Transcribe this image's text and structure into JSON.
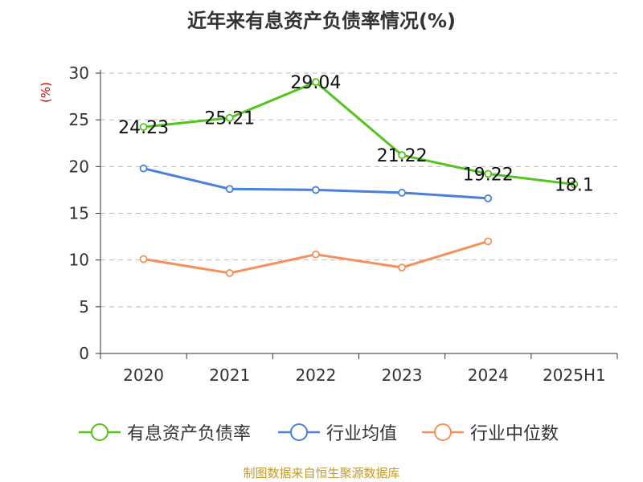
{
  "title": "近年来有息资产负债率情况(%)",
  "unit_label": "(%)",
  "source": "制图数据来自恒生聚源数据库",
  "colors": {
    "axis": "#333333",
    "grid": "#bbbbbb",
    "unit": "#cc0000",
    "source": "#c49a2a"
  },
  "chart_data": {
    "type": "line",
    "title": "近年来有息资产负债率情况(%)",
    "ylabel": "(%)",
    "xlabel": "",
    "categories": [
      "2020",
      "2021",
      "2022",
      "2023",
      "2024",
      "2025H1"
    ],
    "ylim": [
      0,
      30
    ],
    "yticks": [
      "0",
      "5",
      "10",
      "15",
      "20",
      "25",
      "30"
    ],
    "grid": true,
    "legend_position": "bottom",
    "series": [
      {
        "name": "有息资产负债率",
        "color": "#52c41a",
        "values": [
          24.23,
          25.21,
          29.04,
          21.22,
          19.22,
          18.1
        ],
        "labels": [
          "24.23",
          "25.21",
          "29.04",
          "21.22",
          "19.22",
          "18.1"
        ]
      },
      {
        "name": "行业均值",
        "color": "#4a7fdb",
        "values": [
          19.8,
          17.6,
          17.5,
          17.2,
          16.6,
          null
        ],
        "labels": []
      },
      {
        "name": "行业中位数",
        "color": "#f5905a",
        "values": [
          10.1,
          8.6,
          10.6,
          9.2,
          12.0,
          null
        ],
        "labels": []
      }
    ]
  }
}
